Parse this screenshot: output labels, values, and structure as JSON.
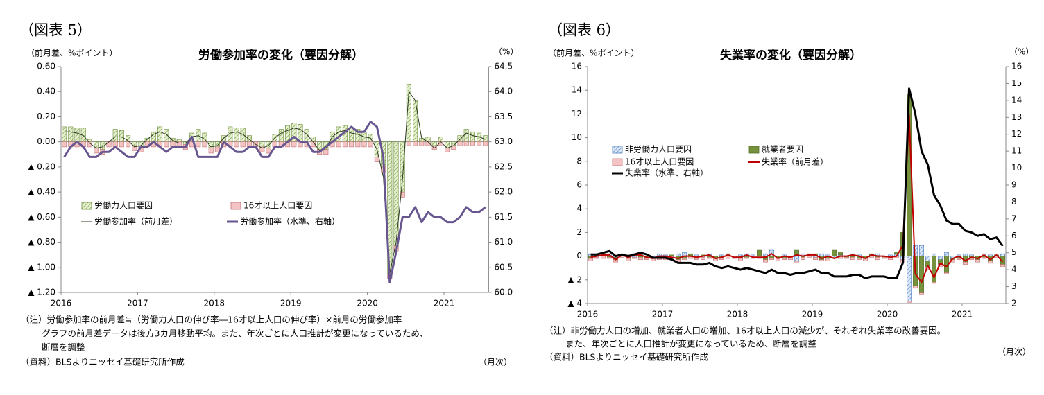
{
  "chart_data": [
    {
      "type": "combo",
      "figure_label": "（図表 5）",
      "title": "労働参加率の変化（要因分解）",
      "ylabel": "（前月差、%ポイント）",
      "y2label": "（%）",
      "xlabel": "（月次）",
      "notes": [
        "（注）労働参加率の前月差≒（労働力人口の伸び率―16才以上人口の伸び率）×前月の労働参加率",
        "グラフの前月差データは後方3カ月移動平均。また、年次ごとに人口推計が変更になっているため、",
        "断層を調整"
      ],
      "source": "（資料）BLSよりニッセイ基礎研究所作成",
      "categories": [
        "2016",
        null,
        null,
        null,
        null,
        null,
        null,
        null,
        null,
        null,
        null,
        null,
        "2017",
        null,
        null,
        null,
        null,
        null,
        null,
        null,
        null,
        null,
        null,
        null,
        "2018",
        null,
        null,
        null,
        null,
        null,
        null,
        null,
        null,
        null,
        null,
        null,
        "2019",
        null,
        null,
        null,
        null,
        null,
        null,
        null,
        null,
        null,
        null,
        null,
        "2020",
        null,
        null,
        null,
        null,
        null,
        null,
        null,
        null,
        null,
        null,
        null,
        "2021",
        null,
        null,
        null,
        null,
        null,
        null
      ],
      "ylim": [
        -1.2,
        0.6
      ],
      "yticks": [
        {
          "value": -1.2,
          "label": "▲ 1.20"
        },
        {
          "value": -1.0,
          "label": "▲ 1.00"
        },
        {
          "value": -0.8,
          "label": "▲ 0.80"
        },
        {
          "value": -0.6,
          "label": "▲ 0.60"
        },
        {
          "value": -0.4,
          "label": "▲ 0.40"
        },
        {
          "value": -0.2,
          "label": "▲ 0.20"
        },
        {
          "value": 0,
          "label": "0.00"
        },
        {
          "value": 0.2,
          "label": "0.20"
        },
        {
          "value": 0.4,
          "label": "0.40"
        },
        {
          "value": 0.6,
          "label": "0.60"
        }
      ],
      "y2lim": [
        60,
        64.5
      ],
      "y2ticks": [
        {
          "value": 60,
          "label": "60.0"
        },
        60.5,
        {
          "value": 61,
          "label": "61.0"
        },
        61.5,
        {
          "value": 62,
          "label": "62.0"
        },
        62.5,
        {
          "value": 63,
          "label": "63.0"
        },
        63.5,
        {
          "value": 64,
          "label": "64.0"
        },
        64.5
      ],
      "grid": false,
      "series": [
        {
          "name": "労働力人口要因",
          "type": "bar",
          "color": "#d9eab4",
          "edge": "#6d8f3a",
          "pattern": "hatch",
          "values": [
            0.12,
            0.12,
            0.11,
            0.11,
            0.02,
            -0.05,
            -0.06,
            0.0,
            0.1,
            0.09,
            0.05,
            -0.03,
            -0.04,
            0.03,
            0.08,
            0.12,
            0.1,
            0.03,
            0.02,
            -0.02,
            0.07,
            0.1,
            0.07,
            -0.05,
            -0.04,
            0.05,
            0.12,
            0.11,
            0.11,
            0.05,
            0.0,
            -0.04,
            -0.05,
            0.06,
            0.1,
            0.13,
            0.15,
            0.14,
            0.1,
            0.04,
            -0.06,
            -0.06,
            0.08,
            0.12,
            0.13,
            0.11,
            0.1,
            0.08,
            0.06,
            -0.12,
            -0.2,
            -1.05,
            -0.83,
            -0.4,
            0.46,
            0.33,
            0.03,
            0.04,
            -0.03,
            0.04,
            -0.05,
            -0.03,
            0.05,
            0.1,
            0.08,
            0.07,
            0.05
          ]
        },
        {
          "name": "16才以上人口要因",
          "type": "bar",
          "color": "#f4c4c4",
          "edge": "#c07070",
          "values": [
            -0.04,
            -0.04,
            -0.04,
            -0.04,
            -0.04,
            -0.04,
            -0.04,
            -0.04,
            -0.04,
            -0.04,
            -0.04,
            -0.04,
            -0.04,
            -0.04,
            -0.04,
            -0.04,
            -0.04,
            -0.04,
            -0.04,
            -0.04,
            -0.04,
            -0.04,
            -0.04,
            -0.04,
            -0.04,
            -0.04,
            -0.04,
            -0.04,
            -0.04,
            -0.04,
            -0.04,
            -0.04,
            -0.04,
            -0.04,
            -0.04,
            -0.04,
            -0.04,
            -0.04,
            -0.04,
            -0.04,
            -0.04,
            -0.04,
            -0.04,
            -0.04,
            -0.04,
            -0.04,
            -0.04,
            -0.04,
            -0.04,
            -0.04,
            -0.04,
            -0.04,
            -0.04,
            -0.04,
            -0.03,
            -0.03,
            -0.03,
            -0.03,
            -0.03,
            -0.03,
            -0.03,
            -0.03,
            -0.03,
            -0.03,
            -0.03,
            -0.03,
            -0.03
          ]
        },
        {
          "name": "労働参加率（前月差）",
          "type": "line",
          "color": "#2a3a1e",
          "width": 1,
          "values": [
            0.08,
            0.08,
            0.07,
            0.05,
            -0.01,
            -0.05,
            -0.04,
            0.0,
            0.04,
            0.04,
            0.01,
            -0.04,
            -0.03,
            0.02,
            0.06,
            0.08,
            0.06,
            0.01,
            -0.01,
            -0.01,
            0.04,
            0.05,
            0.02,
            -0.04,
            -0.03,
            0.03,
            0.07,
            0.08,
            0.06,
            0.02,
            -0.02,
            -0.05,
            -0.03,
            0.03,
            0.07,
            0.09,
            0.11,
            0.1,
            0.06,
            0.0,
            -0.07,
            -0.05,
            0.04,
            0.08,
            0.09,
            0.07,
            0.06,
            0.04,
            0.03,
            -0.06,
            -0.28,
            -1.05,
            -0.8,
            -0.3,
            0.4,
            0.33,
            0.03,
            0.0,
            -0.05,
            0.0,
            -0.05,
            -0.03,
            0.02,
            0.07,
            0.05,
            0.04,
            0.02
          ]
        },
        {
          "name": "労働参加率（水準、右軸）",
          "type": "line",
          "axis": "y2",
          "color": "#67568f",
          "width": 3,
          "values": [
            62.7,
            62.9,
            63.0,
            62.9,
            62.7,
            62.7,
            62.8,
            62.8,
            62.9,
            62.8,
            62.7,
            62.7,
            62.9,
            62.9,
            63.0,
            62.9,
            62.8,
            62.9,
            62.9,
            62.9,
            63.1,
            62.7,
            62.7,
            62.7,
            62.7,
            63.0,
            62.9,
            62.8,
            62.8,
            62.9,
            62.9,
            62.7,
            62.7,
            62.9,
            62.9,
            63.0,
            63.1,
            63.0,
            63.0,
            62.8,
            62.8,
            62.9,
            63.0,
            63.1,
            63.2,
            63.3,
            63.2,
            63.2,
            63.4,
            63.3,
            62.7,
            60.2,
            60.8,
            61.5,
            61.5,
            61.7,
            61.4,
            61.6,
            61.5,
            61.5,
            61.4,
            61.4,
            61.5,
            61.7,
            61.6,
            61.6,
            61.7
          ]
        }
      ]
    },
    {
      "type": "combo",
      "figure_label": "（図表 6）",
      "title": "失業率の変化（要因分解）",
      "ylabel": "（前月差、%ポイント）",
      "y2label": "（%）",
      "xlabel": "（月次）",
      "notes": [
        "（注）非労働力人口の増加、就業者人口の増加、16才以上人口の減少が、それぞれ失業率の改善要因。",
        "また、年次ごとに人口推計が変更になっているため、断層を調整"
      ],
      "source": "（資料）BLSよりニッセイ基礎研究所作成",
      "categories": [
        "2016",
        null,
        null,
        null,
        null,
        null,
        null,
        null,
        null,
        null,
        null,
        null,
        "2017",
        null,
        null,
        null,
        null,
        null,
        null,
        null,
        null,
        null,
        null,
        null,
        "2018",
        null,
        null,
        null,
        null,
        null,
        null,
        null,
        null,
        null,
        null,
        null,
        "2019",
        null,
        null,
        null,
        null,
        null,
        null,
        null,
        null,
        null,
        null,
        null,
        "2020",
        null,
        null,
        null,
        null,
        null,
        null,
        null,
        null,
        null,
        null,
        null,
        "2021",
        null,
        null,
        null,
        null,
        null,
        null
      ],
      "ylim": [
        -4,
        16
      ],
      "yticks": [
        {
          "value": -4,
          "label": "▲ 4"
        },
        {
          "value": -2,
          "label": "▲ 2"
        },
        0,
        2,
        4,
        6,
        8,
        10,
        12,
        14,
        16
      ],
      "y2lim": [
        2,
        16
      ],
      "y2ticks": [
        2,
        3,
        4,
        5,
        6,
        7,
        8,
        9,
        10,
        11,
        12,
        13,
        14,
        15,
        16
      ],
      "grid": false,
      "series": [
        {
          "name": "非労働力人口要因",
          "type": "bar",
          "color": "#bcd3ef",
          "edge": "#4f7fbf",
          "pattern": "hatch",
          "values": [
            0.2,
            -0.1,
            0,
            0.2,
            -0.1,
            0,
            0.1,
            -0.1,
            0.2,
            0,
            -0.1,
            0.2,
            0.1,
            -0.1,
            0.2,
            0.3,
            0,
            0.1,
            -0.1,
            0.2,
            0,
            0.1,
            0.1,
            -0.1,
            0.1,
            0.2,
            0.1,
            -0.1,
            0.2,
            0.5,
            0,
            0.1,
            0,
            -0.4,
            0.2,
            0.1,
            -0.1,
            0.2,
            0.1,
            -0.1,
            0.1,
            0,
            0.2,
            0.1,
            0,
            0.1,
            0.2,
            0,
            0.1,
            0.2,
            -0.3,
            -3.8,
            0.9,
            0.9,
            -0.4,
            0.2,
            -0.3,
            0.3,
            -0.2,
            0.1,
            0.2,
            0.1,
            0,
            0.2,
            0.1,
            0,
            0.2
          ]
        },
        {
          "name": "就業者要因",
          "type": "bar",
          "color": "#76923c",
          "edge": "#56702a",
          "values": [
            -0.2,
            0.1,
            0.2,
            -0.1,
            -0.2,
            0.1,
            -0.2,
            0.2,
            -0.1,
            -0.2,
            -0.1,
            -0.2,
            -0.1,
            0.1,
            -0.3,
            -0.2,
            0.2,
            -0.2,
            0.1,
            -0.1,
            -0.2,
            -0.2,
            0.1,
            0,
            -0.2,
            -0.1,
            0,
            0.5,
            -0.3,
            -0.2,
            -0.2,
            -0.2,
            -0.1,
            0.5,
            -0.1,
            0.1,
            0.2,
            -0.3,
            -0.2,
            0.5,
            0.2,
            -0.1,
            -0.1,
            -0.2,
            -0.2,
            0.1,
            -0.1,
            -0.1,
            -0.1,
            0.1,
            2.0,
            13.7,
            -2.5,
            -3.1,
            -0.5,
            -2.2,
            -0.4,
            -1.4,
            -0.1,
            -0.2,
            -0.5,
            -0.2,
            -0.3,
            -0.1,
            -0.4,
            0.1,
            -0.7
          ]
        },
        {
          "name": "16才以上人口要因",
          "type": "bar",
          "color": "#f4c4c4",
          "edge": "#c07070",
          "values": [
            -0.2,
            -0.1,
            -0.2,
            -0.1,
            -0.2,
            -0.1,
            -0.2,
            -0.1,
            -0.2,
            -0.1,
            -0.2,
            -0.1,
            -0.2,
            -0.1,
            -0.2,
            -0.1,
            -0.2,
            -0.1,
            -0.2,
            -0.1,
            -0.2,
            -0.1,
            -0.2,
            -0.1,
            -0.2,
            -0.1,
            -0.2,
            -0.1,
            -0.2,
            -0.1,
            -0.2,
            -0.1,
            -0.2,
            -0.1,
            -0.2,
            -0.1,
            -0.2,
            -0.1,
            -0.2,
            -0.1,
            -0.2,
            -0.1,
            -0.2,
            -0.1,
            -0.2,
            -0.1,
            -0.2,
            -0.1,
            -0.2,
            -0.1,
            -0.2,
            -0.1,
            -0.2,
            -0.1,
            -0.2,
            -0.1,
            -0.2,
            -0.1,
            -0.2,
            -0.1,
            -0.2,
            -0.1,
            -0.2,
            -0.1,
            -0.2,
            -0.1,
            -0.2
          ]
        },
        {
          "name": "失業率（前月差）",
          "type": "line",
          "color": "#c00000",
          "width": 2,
          "values": [
            -0.1,
            0,
            0.1,
            0.1,
            -0.3,
            0.1,
            -0.1,
            0.1,
            0.1,
            -0.1,
            -0.2,
            0,
            0,
            -0.1,
            -0.2,
            0,
            0,
            -0.1,
            0,
            0.1,
            -0.2,
            -0.1,
            0.1,
            -0.1,
            -0.1,
            0.1,
            -0.1,
            -0.1,
            -0.1,
            0.2,
            -0.2,
            0,
            -0.1,
            0.1,
            0,
            0.1,
            0.1,
            -0.2,
            0,
            -0.2,
            0,
            0,
            0.1,
            0,
            -0.2,
            0.1,
            0,
            0,
            -0.1,
            0,
            0.9,
            12.0,
            -1.5,
            -2.2,
            -0.8,
            -1.8,
            -0.6,
            -0.9,
            -0.2,
            0,
            -0.4,
            -0.1,
            -0.2,
            0.1,
            -0.3,
            0.1,
            -0.5
          ]
        },
        {
          "name": "失業率（水準、右軸）",
          "type": "line",
          "axis": "y2",
          "color": "#000000",
          "width": 3,
          "values": [
            4.9,
            4.9,
            5.0,
            5.1,
            4.8,
            4.9,
            4.8,
            4.9,
            5.0,
            4.9,
            4.7,
            4.7,
            4.7,
            4.6,
            4.4,
            4.4,
            4.4,
            4.3,
            4.3,
            4.4,
            4.2,
            4.1,
            4.2,
            4.1,
            4.0,
            4.1,
            4.0,
            3.9,
            3.8,
            4.0,
            3.8,
            3.8,
            3.7,
            3.8,
            3.8,
            3.9,
            4.0,
            3.8,
            3.8,
            3.6,
            3.6,
            3.6,
            3.7,
            3.7,
            3.5,
            3.6,
            3.6,
            3.6,
            3.5,
            3.5,
            4.4,
            14.7,
            13.2,
            11.0,
            10.2,
            8.4,
            7.8,
            6.9,
            6.7,
            6.7,
            6.3,
            6.2,
            6.0,
            6.1,
            5.8,
            5.9,
            5.4
          ]
        }
      ]
    }
  ]
}
